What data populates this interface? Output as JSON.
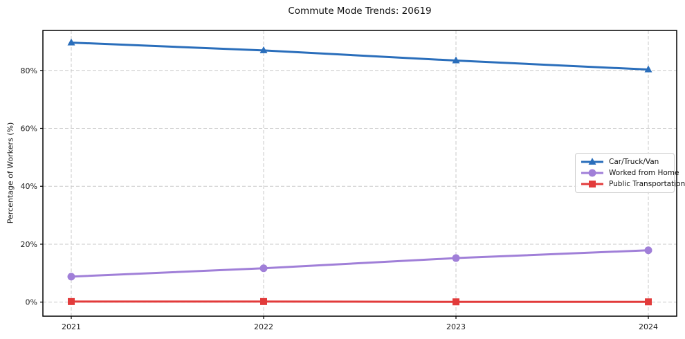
{
  "chart_data": {
    "type": "line",
    "title": "Commute Mode Trends: 20619",
    "xlabel": "",
    "ylabel": "Percentage of Workers (%)",
    "categories": [
      "2021",
      "2022",
      "2023",
      "2024"
    ],
    "series": [
      {
        "name": "Car/Truck/Van",
        "color": "#2a6ebb",
        "marker": "triangle-up",
        "values": [
          89.6,
          86.9,
          83.4,
          80.3
        ]
      },
      {
        "name": "Worked from Home",
        "color": "#a07fd8",
        "marker": "circle",
        "values": [
          8.8,
          11.7,
          15.2,
          17.9
        ]
      },
      {
        "name": "Public Transportation",
        "color": "#e23b3b",
        "marker": "square",
        "values": [
          0.2,
          0.2,
          0.1,
          0.1
        ]
      }
    ],
    "yticks": [
      {
        "value": 0,
        "label": "0%"
      },
      {
        "value": 20,
        "label": "20%"
      },
      {
        "value": 40,
        "label": "40%"
      },
      {
        "value": 60,
        "label": "60%"
      },
      {
        "value": 80,
        "label": "80%"
      }
    ],
    "ylim": [
      -4.85,
      93.8
    ],
    "grid": {
      "dashed": true,
      "color": "#c9c9c9"
    },
    "legend_position": "center-right",
    "frame_color": "#000000"
  }
}
